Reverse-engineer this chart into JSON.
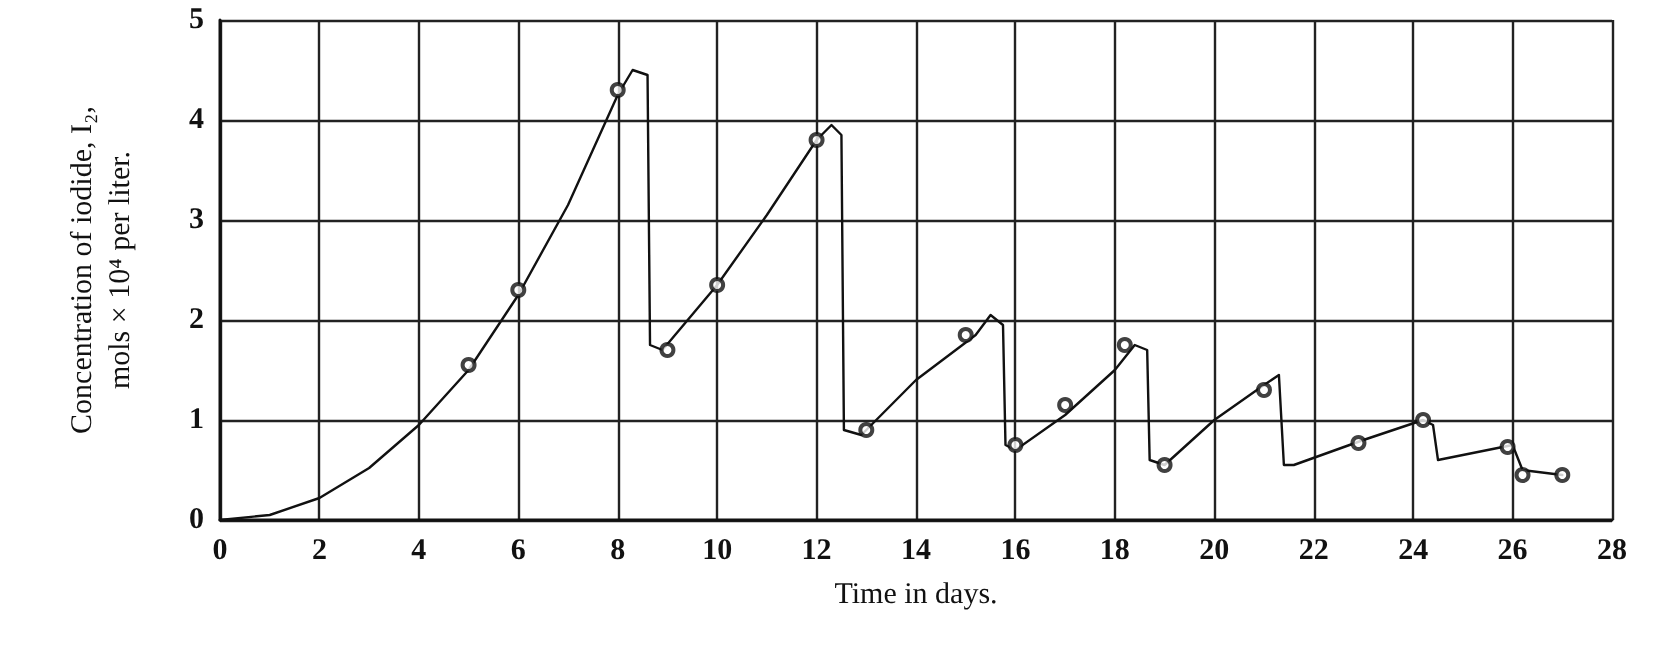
{
  "chart_data": {
    "type": "line",
    "xlabel": "Time in days.",
    "ylabel": "Concentration of iodide, I₂,\nmols × 10⁴ per liter.",
    "xlim": [
      0,
      28
    ],
    "xticks": [
      0,
      2,
      4,
      6,
      8,
      10,
      12,
      14,
      16,
      18,
      20,
      22,
      24,
      26,
      28
    ],
    "ylim": [
      0,
      5
    ],
    "yticks": [
      0,
      1,
      2,
      3,
      4,
      5
    ],
    "grid": true,
    "series": [
      {
        "color": "#111111",
        "marker": "none",
        "line_style": "solid",
        "x": [
          0,
          1,
          2,
          3,
          4,
          5,
          6,
          7,
          8,
          8.3,
          8.6,
          8.65,
          8.9,
          10,
          11,
          12,
          12.3,
          12.5,
          12.55,
          12.9,
          14,
          15.2,
          15.5,
          15.75,
          15.8,
          16,
          17,
          18,
          18.4,
          18.65,
          18.7,
          19,
          20,
          21,
          21.3,
          21.4,
          21.6,
          23,
          24.2,
          24.4,
          24.5,
          26,
          26.2,
          27
        ],
        "values": [
          0,
          0.05,
          0.22,
          0.52,
          0.95,
          1.5,
          2.25,
          3.15,
          4.25,
          4.5,
          4.45,
          1.75,
          1.7,
          2.35,
          3.05,
          3.8,
          3.95,
          3.85,
          0.9,
          0.85,
          1.4,
          1.85,
          2.05,
          1.95,
          0.75,
          0.7,
          1.05,
          1.5,
          1.75,
          1.7,
          0.6,
          0.55,
          1.0,
          1.35,
          1.45,
          0.55,
          0.55,
          0.8,
          1.0,
          0.95,
          0.6,
          0.75,
          0.5,
          0.45
        ]
      },
      {
        "type": "scatter",
        "color": "#111111",
        "marker": "circle",
        "x": [
          5,
          6,
          8,
          9,
          10,
          12,
          13,
          15,
          16,
          17,
          18.2,
          19,
          21,
          22.9,
          24.2,
          25.9,
          26.2,
          27
        ],
        "values": [
          1.55,
          2.3,
          4.3,
          1.7,
          2.35,
          3.8,
          0.9,
          1.85,
          0.75,
          1.15,
          1.75,
          0.55,
          1.3,
          0.77,
          1.0,
          0.73,
          0.45,
          0.45
        ]
      }
    ]
  }
}
